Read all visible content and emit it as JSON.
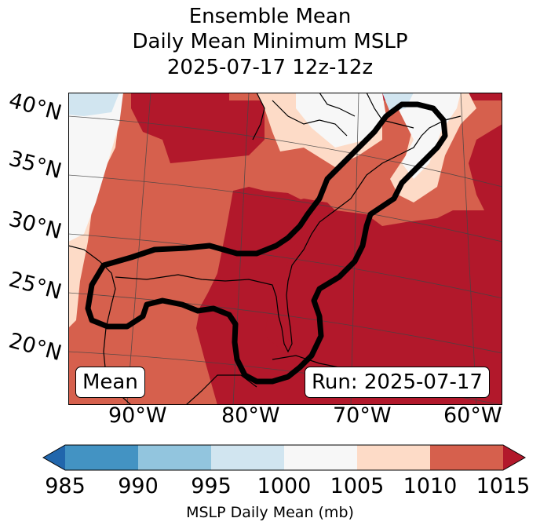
{
  "title": {
    "line1": "Ensemble Mean",
    "line2": "Daily Mean Minimum MSLP",
    "line3": "2025-07-17 12z-12z"
  },
  "lat_labels": [
    "40°N",
    "35°N",
    "30°N",
    "25°N",
    "20°N"
  ],
  "lon_labels": [
    "90°W",
    "80°W",
    "70°W",
    "60°W"
  ],
  "boxes": {
    "left": "Mean",
    "right": "Run: 2025-07-17"
  },
  "colorbar": {
    "ticks": [
      "985",
      "990",
      "995",
      "1000",
      "1005",
      "1010",
      "1015"
    ],
    "label": "MSLP Daily Mean (mb)",
    "colors": {
      "under": "#2166ac",
      "c985_990": "#4393c3",
      "c990_995": "#92c5de",
      "c995_1000": "#d1e5f0",
      "c1000_1005": "#f7f7f7",
      "c1005_1010": "#fddbc7",
      "c1010_1015": "#d6604d",
      "over": "#b2182b"
    }
  }
}
